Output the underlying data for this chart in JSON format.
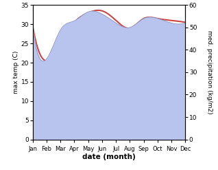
{
  "months": [
    "Jan",
    "Feb",
    "Mar",
    "Apr",
    "May",
    "Jun",
    "Jul",
    "Aug",
    "Sep",
    "Oct",
    "Nov",
    "Dec"
  ],
  "max_temp": [
    29.5,
    20.5,
    25.0,
    30.5,
    33.0,
    33.5,
    31.0,
    29.0,
    31.5,
    31.5,
    31.0,
    30.5
  ],
  "precipitation": [
    49,
    36,
    49,
    53,
    57,
    56,
    52,
    50,
    54,
    54,
    52,
    52
  ],
  "temp_ylim": [
    0,
    35
  ],
  "precip_ylim": [
    0,
    60
  ],
  "temp_color": "#cc4444",
  "precip_fill_color": "#b8c4ee",
  "precip_line_color": "#8890bb",
  "xlabel": "date (month)",
  "ylabel_left": "max temp (C)",
  "ylabel_right": "med. precipitation (kg/m2)",
  "temp_yticks": [
    0,
    5,
    10,
    15,
    20,
    25,
    30,
    35
  ],
  "precip_yticks": [
    0,
    10,
    20,
    30,
    40,
    50,
    60
  ],
  "background_color": "#ffffff"
}
